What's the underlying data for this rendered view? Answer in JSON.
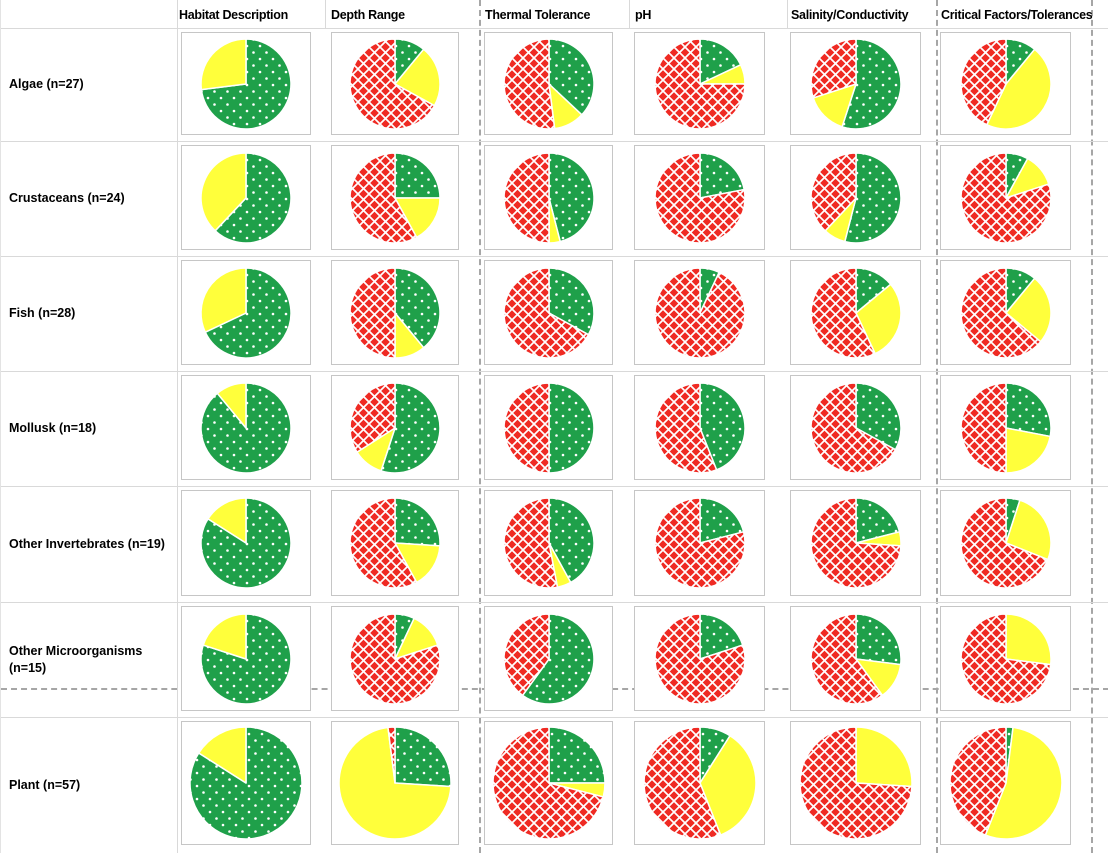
{
  "colors": {
    "green": "#1FA04A",
    "yellow": "#FFFF3B",
    "red": "#EF2A23",
    "pattern_overlay": "#FFFFFF",
    "gridline": "#D9D9D9",
    "page_break_dash": "#A6A6A6"
  },
  "styles": {
    "green_pattern": "white-dots",
    "yellow_pattern": "solid",
    "red_pattern": "white-crosshatch"
  },
  "chart_data": {
    "type": "pie",
    "layout": "matrix of pie charts; slices drawn clockwise from 12 o'clock in order green, yellow, red; values are fractions of each group (n) per column",
    "legend_position": "none",
    "columns": [
      "Habitat Description",
      "Depth Range",
      "Thermal Tolerance",
      "pH",
      "Salinity/Conductivity",
      "Critical Factors/Tolerances"
    ],
    "series_keys": [
      "green",
      "yellow",
      "red"
    ],
    "rows": [
      {
        "label": "Algae (n=27)",
        "n": 27,
        "pies": [
          {
            "green": 0.73,
            "yellow": 0.27,
            "red": 0.0
          },
          {
            "green": 0.11,
            "yellow": 0.22,
            "red": 0.67
          },
          {
            "green": 0.37,
            "yellow": 0.11,
            "red": 0.52
          },
          {
            "green": 0.18,
            "yellow": 0.07,
            "red": 0.75
          },
          {
            "green": 0.55,
            "yellow": 0.15,
            "red": 0.3
          },
          {
            "green": 0.11,
            "yellow": 0.46,
            "red": 0.43
          }
        ]
      },
      {
        "label": "Crustaceans (n=24)",
        "n": 24,
        "pies": [
          {
            "green": 0.62,
            "yellow": 0.38,
            "red": 0.0
          },
          {
            "green": 0.25,
            "yellow": 0.17,
            "red": 0.58
          },
          {
            "green": 0.46,
            "yellow": 0.04,
            "red": 0.5
          },
          {
            "green": 0.22,
            "yellow": 0.0,
            "red": 0.78
          },
          {
            "green": 0.54,
            "yellow": 0.08,
            "red": 0.38
          },
          {
            "green": 0.08,
            "yellow": 0.12,
            "red": 0.8
          }
        ]
      },
      {
        "label": "Fish (n=28)",
        "n": 28,
        "pies": [
          {
            "green": 0.68,
            "yellow": 0.32,
            "red": 0.0
          },
          {
            "green": 0.39,
            "yellow": 0.11,
            "red": 0.5
          },
          {
            "green": 0.33,
            "yellow": 0.0,
            "red": 0.67
          },
          {
            "green": 0.07,
            "yellow": 0.0,
            "red": 0.93
          },
          {
            "green": 0.14,
            "yellow": 0.29,
            "red": 0.57
          },
          {
            "green": 0.11,
            "yellow": 0.25,
            "red": 0.64
          }
        ]
      },
      {
        "label": "Mollusk (n=18)",
        "n": 18,
        "pies": [
          {
            "green": 0.89,
            "yellow": 0.11,
            "red": 0.0
          },
          {
            "green": 0.55,
            "yellow": 0.11,
            "red": 0.34
          },
          {
            "green": 0.5,
            "yellow": 0.0,
            "red": 0.5
          },
          {
            "green": 0.44,
            "yellow": 0.0,
            "red": 0.56
          },
          {
            "green": 0.33,
            "yellow": 0.0,
            "red": 0.67
          },
          {
            "green": 0.28,
            "yellow": 0.22,
            "red": 0.5
          }
        ]
      },
      {
        "label": "Other Invertebrates (n=19)",
        "n": 19,
        "pies": [
          {
            "green": 0.84,
            "yellow": 0.16,
            "red": 0.0
          },
          {
            "green": 0.26,
            "yellow": 0.16,
            "red": 0.58
          },
          {
            "green": 0.42,
            "yellow": 0.05,
            "red": 0.53
          },
          {
            "green": 0.21,
            "yellow": 0.0,
            "red": 0.79
          },
          {
            "green": 0.21,
            "yellow": 0.05,
            "red": 0.74
          },
          {
            "green": 0.05,
            "yellow": 0.26,
            "red": 0.69
          }
        ]
      },
      {
        "label": "Other Microorganisms (n=15)",
        "n": 15,
        "pies": [
          {
            "green": 0.8,
            "yellow": 0.2,
            "red": 0.0
          },
          {
            "green": 0.07,
            "yellow": 0.13,
            "red": 0.8
          },
          {
            "green": 0.6,
            "yellow": 0.0,
            "red": 0.4
          },
          {
            "green": 0.2,
            "yellow": 0.0,
            "red": 0.8
          },
          {
            "green": 0.27,
            "yellow": 0.13,
            "red": 0.6
          },
          {
            "green": 0.0,
            "yellow": 0.27,
            "red": 0.73
          }
        ]
      },
      {
        "label": "Plant (n=57)",
        "n": 57,
        "pies": [
          {
            "green": 0.84,
            "yellow": 0.16,
            "red": 0.0
          },
          {
            "green": 0.26,
            "yellow": 0.72,
            "red": 0.02
          },
          {
            "green": 0.25,
            "yellow": 0.04,
            "red": 0.71
          },
          {
            "green": 0.09,
            "yellow": 0.35,
            "red": 0.56
          },
          {
            "green": 0.0,
            "yellow": 0.26,
            "red": 0.74
          },
          {
            "green": 0.02,
            "yellow": 0.54,
            "red": 0.44
          }
        ]
      }
    ]
  }
}
